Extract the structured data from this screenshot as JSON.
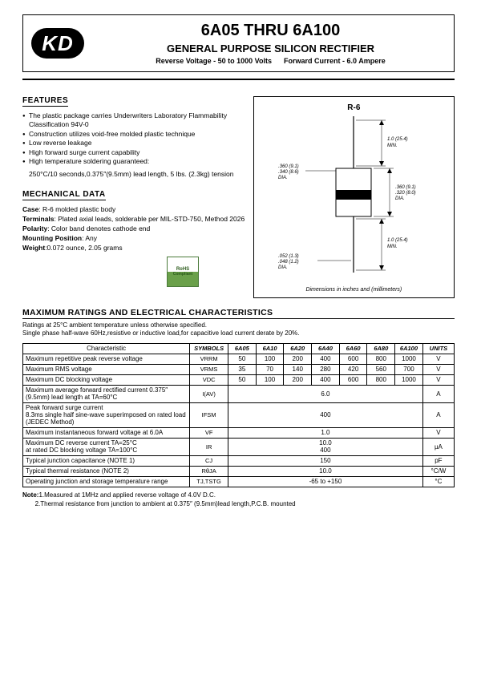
{
  "logo": "KD",
  "header": {
    "title": "6A05  THRU  6A100",
    "subtitle": "GENERAL PURPOSE SILICON RECTIFIER",
    "spec1": "Reverse Voltage - 50 to 1000 Volts",
    "spec2": "Forward Current - 6.0 Ampere"
  },
  "features": {
    "title": "FEATURES",
    "items": [
      "The plastic package carries Underwriters Laboratory Flammability Classification 94V-0",
      "Construction utilizes void-free molded plastic technique",
      "Low reverse leakage",
      "High forward surge current capability",
      "High temperature soldering guaranteed:"
    ],
    "indent": "250°C/10 seconds,0.375″(9.5mm) lead length, 5 lbs. (2.3kg) tension"
  },
  "mechanical": {
    "title": "MECHANICAL DATA",
    "case_l": "Case",
    "case_v": ": R-6 molded plastic body",
    "term_l": "Terminals",
    "term_v": ": Plated axial leads, solderable per MIL-STD-750, Method 2026",
    "pol_l": "Polarity",
    "pol_v": ": Color band denotes cathode end",
    "mount_l": "Mounting Position",
    "mount_v": ": Any",
    "weight_l": "Weight",
    "weight_v": ":0.072 ounce, 2.05 grams"
  },
  "rohs": {
    "l1": "RoHS",
    "l2": "Compliant"
  },
  "diagram": {
    "label": "R-6",
    "footer": "Dimensions in inches and (millimeters)",
    "d1": ".360 (9.1)",
    "d1b": ".340 (8.6)",
    "d1c": "DIA.",
    "d2": ".052 (1.3)",
    "d2b": ".048 (1.2)",
    "d2c": "DIA.",
    "d3": "1.0 (25.4)",
    "d3b": "MIN.",
    "d4": ".360 (9.1)",
    "d4b": ".320 (8.0)",
    "d4c": "DIA.",
    "d5": "1.0 (25.4)",
    "d5b": "MIN."
  },
  "ratings": {
    "title": "MAXIMUM RATINGS AND ELECTRICAL CHARACTERISTICS",
    "note1": "Ratings at 25°C ambient temperature unless otherwise specified.",
    "note2": "Single phase half-wave 60Hz,resistive or inductive load,for capacitive load current derate by 20%.",
    "head": {
      "char": "Characteristic",
      "sym": "SYMBOLS",
      "c1": "6A05",
      "c2": "6A10",
      "c3": "6A20",
      "c4": "6A40",
      "c5": "6A60",
      "c6": "6A80",
      "c7": "6A100",
      "unit": "UNITS"
    },
    "rows": [
      {
        "char": "Maximum repetitive peak reverse voltage",
        "sym": "VRRM",
        "v": [
          "50",
          "100",
          "200",
          "400",
          "600",
          "800",
          "1000"
        ],
        "unit": "V"
      },
      {
        "char": "Maximum RMS voltage",
        "sym": "VRMS",
        "v": [
          "35",
          "70",
          "140",
          "280",
          "420",
          "560",
          "700"
        ],
        "unit": "V"
      },
      {
        "char": "Maximum DC blocking voltage",
        "sym": "VDC",
        "v": [
          "50",
          "100",
          "200",
          "400",
          "600",
          "800",
          "1000"
        ],
        "unit": "V"
      },
      {
        "char": "Maximum average forward rectified current 0.375″ (9.5mm) lead length at TA=60°C",
        "sym": "I(AV)",
        "span": "6.0",
        "unit": "A"
      },
      {
        "char": "Peak forward surge current\n8.3ms single half sine-wave superimposed on rated load (JEDEC Method)",
        "sym": "IFSM",
        "span": "400",
        "unit": "A"
      },
      {
        "char": "Maximum instantaneous forward voltage at 6.0A",
        "sym": "VF",
        "span": "1.0",
        "unit": "V"
      },
      {
        "char": "Maximum DC reverse current    TA=25°C\nat rated DC blocking voltage    TA=100°C",
        "sym": "IR",
        "span": "10.0\n400",
        "unit": "µA"
      },
      {
        "char": "Typical junction capacitance (NOTE 1)",
        "sym": "CJ",
        "span": "150",
        "unit": "pF"
      },
      {
        "char": "Typical thermal resistance (NOTE 2)",
        "sym": "RθJA",
        "span": "10.0",
        "unit": "°C/W"
      },
      {
        "char": "Operating junction and storage temperature range",
        "sym": "TJ,TSTG",
        "span": "-65 to +150",
        "unit": "°C"
      }
    ]
  },
  "footnote": {
    "label": "Note:",
    "n1": "1.Measured at 1MHz and applied reverse voltage of 4.0V D.C.",
    "n2": "2.Thermal resistance from junction to ambient  at 0.375″ (9.5mm)lead length,P.C.B. mounted"
  }
}
